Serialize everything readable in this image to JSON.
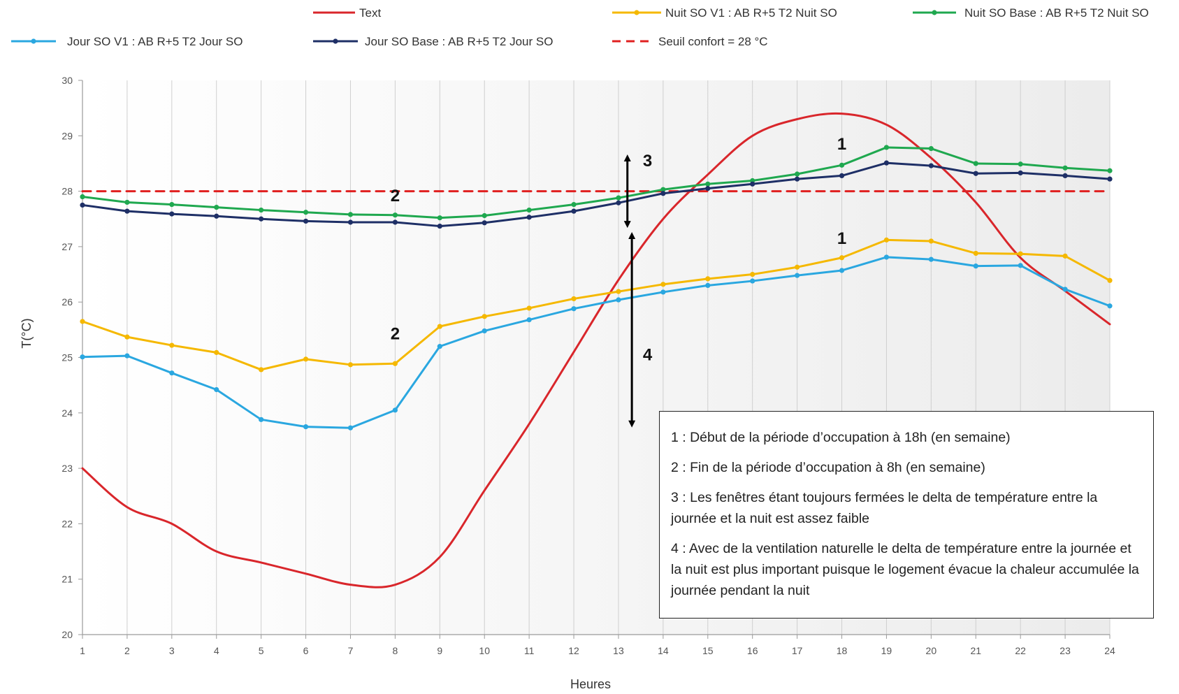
{
  "chart_data": {
    "type": "line",
    "title": "",
    "xlabel": "Heures",
    "ylabel": "T(°C)",
    "xlim": [
      1,
      24
    ],
    "ylim": [
      20,
      30
    ],
    "x_ticks": [
      1,
      2,
      3,
      4,
      5,
      6,
      7,
      8,
      9,
      10,
      11,
      12,
      13,
      14,
      15,
      16,
      17,
      18,
      19,
      20,
      21,
      22,
      23,
      24
    ],
    "y_ticks": [
      20,
      21,
      22,
      23,
      24,
      25,
      26,
      27,
      28,
      29,
      30
    ],
    "grid": "vertical",
    "legend_position": "top",
    "x": [
      1,
      2,
      3,
      4,
      5,
      6,
      7,
      8,
      9,
      10,
      11,
      12,
      13,
      14,
      15,
      16,
      17,
      18,
      19,
      20,
      21,
      22,
      23,
      24
    ],
    "series": [
      {
        "name": "Text",
        "color": "#d9262b",
        "marker": false,
        "smooth": true,
        "values": [
          23.0,
          22.3,
          22.0,
          21.5,
          21.3,
          21.1,
          20.9,
          20.9,
          21.4,
          22.6,
          23.8,
          25.1,
          26.4,
          27.5,
          28.3,
          29.0,
          29.3,
          29.4,
          29.2,
          28.6,
          27.8,
          26.8,
          26.2,
          25.6
        ]
      },
      {
        "name": "Nuit SO V1 : AB R+5 T2 Nuit  SO",
        "color": "#f5b800",
        "marker": true,
        "values": [
          25.65,
          25.37,
          25.22,
          25.09,
          24.78,
          24.97,
          24.87,
          24.89,
          25.56,
          25.74,
          25.89,
          26.06,
          26.19,
          26.32,
          26.42,
          26.5,
          26.63,
          26.8,
          27.12,
          27.1,
          26.88,
          26.87,
          26.83,
          26.39
        ]
      },
      {
        "name": "Nuit SO Base : AB R+5 T2 Nuit  SO",
        "color": "#1fa84f",
        "marker": true,
        "values": [
          27.9,
          27.8,
          27.76,
          27.71,
          27.66,
          27.62,
          27.58,
          27.57,
          27.52,
          27.56,
          27.66,
          27.76,
          27.88,
          28.03,
          28.13,
          28.19,
          28.31,
          28.47,
          28.79,
          28.77,
          28.5,
          28.49,
          28.42,
          28.37
        ]
      },
      {
        "name": "Jour SO V1 : AB R+5 T2 Jour SO",
        "color": "#2aa7e0",
        "marker": true,
        "values": [
          25.01,
          25.03,
          24.72,
          24.42,
          23.88,
          23.75,
          23.73,
          24.05,
          25.2,
          25.48,
          25.68,
          25.88,
          26.04,
          26.18,
          26.3,
          26.38,
          26.48,
          26.57,
          26.81,
          26.77,
          26.65,
          26.66,
          26.23,
          25.93
        ]
      },
      {
        "name": "Jour SO Base : AB R+5 T2 Jour SO",
        "color": "#1e2f66",
        "marker": true,
        "values": [
          27.75,
          27.64,
          27.59,
          27.55,
          27.5,
          27.46,
          27.44,
          27.44,
          27.37,
          27.43,
          27.53,
          27.64,
          27.79,
          27.96,
          28.05,
          28.13,
          28.22,
          28.28,
          28.51,
          28.46,
          28.32,
          28.33,
          28.28,
          28.22
        ]
      },
      {
        "name": "Seuil confort = 28 °C",
        "color": "#e02020",
        "marker": false,
        "dashed": true,
        "values": [
          28,
          28,
          28,
          28,
          28,
          28,
          28,
          28,
          28,
          28,
          28,
          28,
          28,
          28,
          28,
          28,
          28,
          28,
          28,
          28,
          28,
          28,
          28,
          28
        ]
      }
    ],
    "annotations": [
      {
        "text": "1",
        "x": 18,
        "y": 28.75
      },
      {
        "text": "2",
        "x": 8,
        "y": 27.82
      },
      {
        "text": "3",
        "x": 13.65,
        "y": 28.45
      },
      {
        "text": "1",
        "x": 18,
        "y": 27.05
      },
      {
        "text": "2",
        "x": 8,
        "y": 25.33
      },
      {
        "text": "4",
        "x": 13.65,
        "y": 24.95
      }
    ],
    "arrows": [
      {
        "x": 13.2,
        "y_from": 28.6,
        "y_to": 27.4
      },
      {
        "x": 13.3,
        "y_from": 27.2,
        "y_to": 23.8
      }
    ]
  },
  "notes": [
    "1 : Début de la période d’occupation à 18h (en semaine)",
    "2 : Fin de la période d’occupation à 8h (en semaine)",
    "3 : Les fenêtres étant toujours fermées le delta de température entre la journée et la nuit est assez faible",
    "4 : Avec de la ventilation naturelle le delta de température entre la journée et la nuit est plus important puisque le logement évacue la chaleur accumulée la journée pendant la nuit"
  ]
}
